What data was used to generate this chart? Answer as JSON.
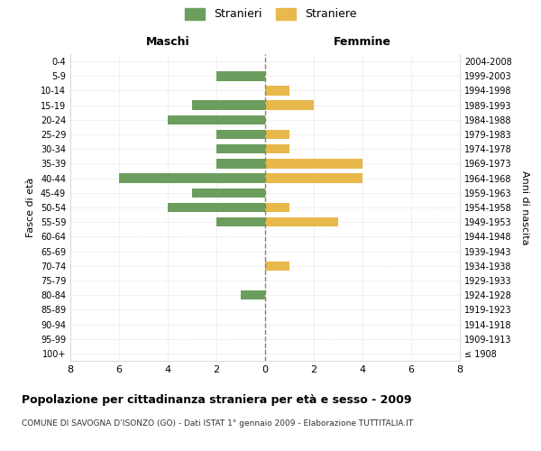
{
  "age_groups": [
    "100+",
    "95-99",
    "90-94",
    "85-89",
    "80-84",
    "75-79",
    "70-74",
    "65-69",
    "60-64",
    "55-59",
    "50-54",
    "45-49",
    "40-44",
    "35-39",
    "30-34",
    "25-29",
    "20-24",
    "15-19",
    "10-14",
    "5-9",
    "0-4"
  ],
  "birth_years": [
    "≤ 1908",
    "1909-1913",
    "1914-1918",
    "1919-1923",
    "1924-1928",
    "1929-1933",
    "1934-1938",
    "1939-1943",
    "1944-1948",
    "1949-1953",
    "1954-1958",
    "1959-1963",
    "1964-1968",
    "1969-1973",
    "1974-1978",
    "1979-1983",
    "1984-1988",
    "1989-1993",
    "1994-1998",
    "1999-2003",
    "2004-2008"
  ],
  "maschi": [
    0,
    0,
    0,
    0,
    1,
    0,
    0,
    0,
    0,
    2,
    4,
    3,
    6,
    2,
    2,
    2,
    4,
    3,
    0,
    2,
    0
  ],
  "femmine": [
    0,
    0,
    0,
    0,
    0,
    0,
    1,
    0,
    0,
    3,
    1,
    0,
    4,
    4,
    1,
    1,
    0,
    2,
    1,
    0,
    0
  ],
  "maschi_color": "#6b9e5e",
  "femmine_color": "#e8b84b",
  "background_color": "#ffffff",
  "grid_color": "#cccccc",
  "zero_line_color": "#888855",
  "title": "Popolazione per cittadinanza straniera per età e sesso - 2009",
  "subtitle": "COMUNE DI SAVOGNA D’ISONZO (GO) - Dati ISTAT 1° gennaio 2009 - Elaborazione TUTTITALIA.IT",
  "ylabel_left": "Fasce di età",
  "ylabel_right": "Anni di nascita",
  "xlabel_maschi": "Maschi",
  "xlabel_femmine": "Femmine",
  "legend_stranieri": "Stranieri",
  "legend_straniere": "Straniere",
  "xlim": 8
}
